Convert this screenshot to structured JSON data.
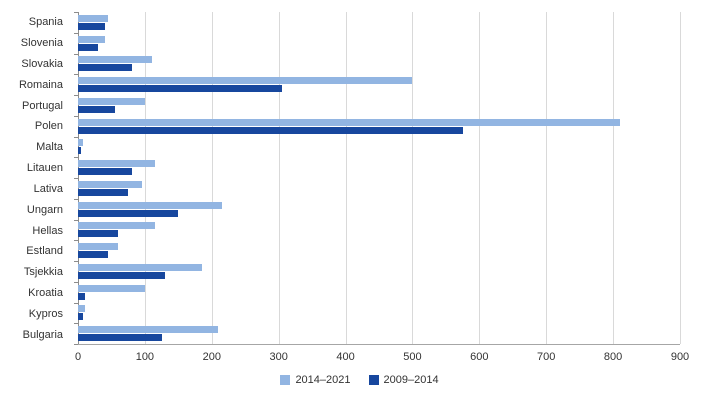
{
  "chart_data": {
    "type": "bar",
    "orientation": "horizontal",
    "title": "",
    "xlabel": "",
    "ylabel": "",
    "grid": true,
    "legend_position": "bottom",
    "xlim": [
      0,
      900
    ],
    "xticks": [
      0,
      100,
      200,
      300,
      400,
      500,
      600,
      700,
      800,
      900
    ],
    "categories": [
      "Spania",
      "Slovenia",
      "Slovakia",
      "Romaina",
      "Portugal",
      "Polen",
      "Malta",
      "Litauen",
      "Lativa",
      "Ungarn",
      "Hellas",
      "Estland",
      "Tsjekkia",
      "Kroatia",
      "Kypros",
      "Bulgaria"
    ],
    "series": [
      {
        "name": "2014–2021",
        "color": "#92b5e2",
        "values": [
          45,
          40,
          110,
          500,
          100,
          810,
          8,
          115,
          95,
          215,
          115,
          60,
          185,
          100,
          10,
          210
        ]
      },
      {
        "name": "2009–2014",
        "color": "#17479e",
        "values": [
          40,
          30,
          80,
          305,
          55,
          575,
          5,
          80,
          75,
          150,
          60,
          45,
          130,
          10,
          8,
          125
        ]
      }
    ]
  }
}
